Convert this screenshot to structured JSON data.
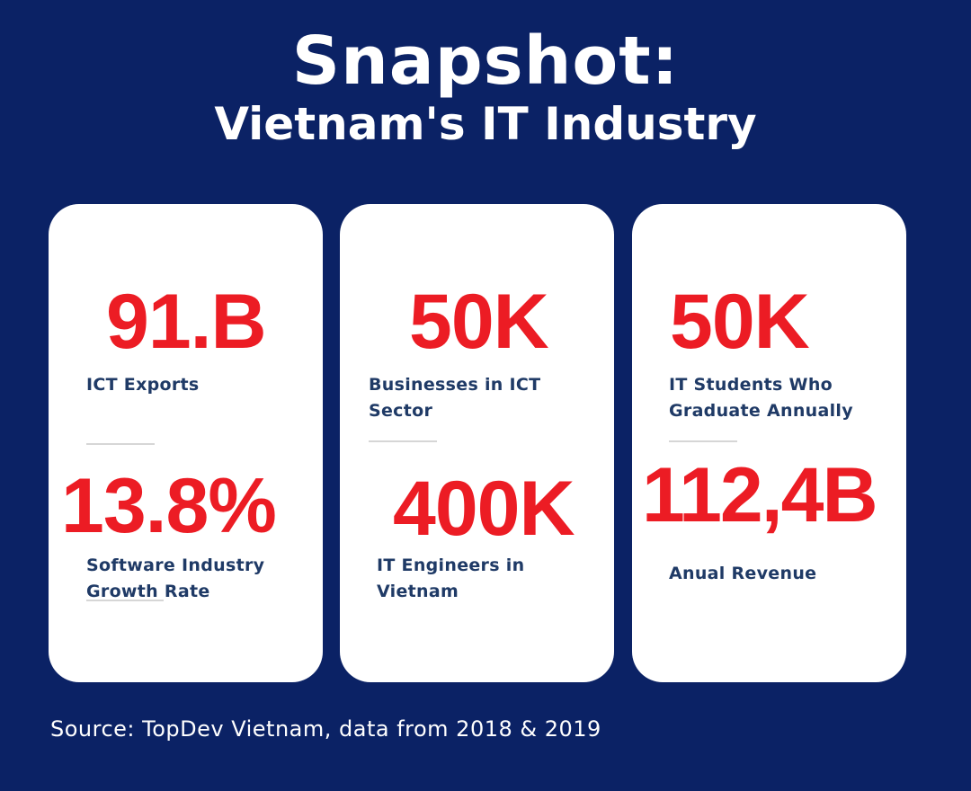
{
  "title": {
    "main": "Snapshot:",
    "sub": "Vietnam's IT Industry"
  },
  "cards": [
    {
      "stats": [
        {
          "value": "91.B",
          "label_lines": [
            "ICT Exports"
          ]
        },
        {
          "value": "13.8%",
          "label_lines": [
            "Software Industry",
            "Growth Rate"
          ]
        }
      ]
    },
    {
      "stats": [
        {
          "value": "50K",
          "label_lines": [
            "Businesses in ICT",
            "Sector"
          ]
        },
        {
          "value": "400K",
          "label_lines": [
            "IT Engineers in",
            "Vietnam"
          ]
        }
      ]
    },
    {
      "stats": [
        {
          "value": "50K",
          "label_lines": [
            "IT Students Who",
            "Graduate Annually"
          ]
        },
        {
          "value": "112,4B",
          "label_lines": [
            "Anual Revenue"
          ]
        }
      ]
    }
  ],
  "source": "Source: TopDev Vietnam, data from 2018 & 2019",
  "colors": {
    "background": "#0b2265",
    "card": "#ffffff",
    "value": "#ec1c24",
    "label": "#1f3a66",
    "divider": "#d6d6d6"
  }
}
